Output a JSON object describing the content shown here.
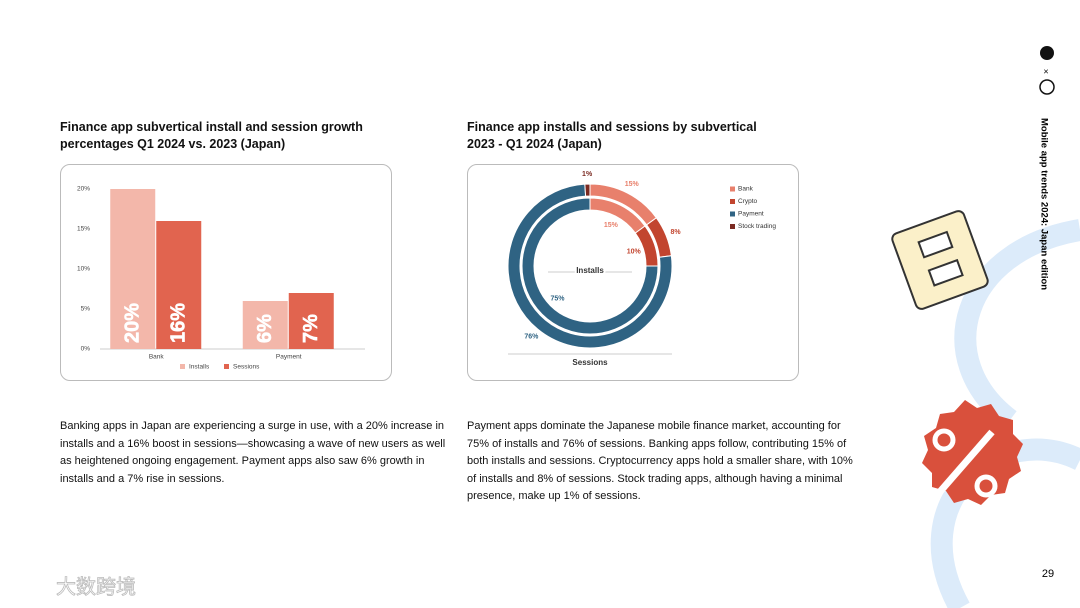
{
  "chart_data": [
    {
      "type": "bar",
      "title": "Finance app subvertical install and session growth percentages Q1 2024 vs. 2023 (Japan)",
      "categories": [
        "Bank",
        "Payment"
      ],
      "series": [
        {
          "name": "Installs",
          "color": "#f3b7aa",
          "values": [
            20,
            6
          ],
          "value_labels": [
            "20%",
            "6%"
          ]
        },
        {
          "name": "Sessions",
          "color": "#e1644f",
          "values": [
            16,
            7
          ],
          "value_labels": [
            "16%",
            "7%"
          ]
        }
      ],
      "ylim": [
        0,
        20
      ],
      "yticks": [
        {
          "value": 0,
          "label": "0%"
        },
        {
          "value": 5,
          "label": "5%"
        },
        {
          "value": 10,
          "label": "10%"
        },
        {
          "value": 15,
          "label": "15%"
        },
        {
          "value": 20,
          "label": "20%"
        }
      ],
      "grid": false,
      "legend": "bottom"
    },
    {
      "type": "donut",
      "title": "Finance app installs and sessions by subvertical 2023 - Q1 2024 (Japan)",
      "categories": [
        "Bank",
        "Crypto",
        "Payment",
        "Stock trading"
      ],
      "colors": [
        "#e8806c",
        "#c2452f",
        "#2f6383",
        "#7b2a22"
      ],
      "series": [
        {
          "name": "Installs",
          "values": [
            15,
            10,
            75,
            0
          ],
          "value_labels": [
            "15%",
            "10%",
            "75%",
            null
          ]
        },
        {
          "name": "Sessions",
          "values": [
            15,
            8,
            76,
            1
          ],
          "value_labels": [
            "15%",
            "8%",
            "76%",
            "1%"
          ]
        }
      ],
      "legend": "right"
    }
  ],
  "page": {
    "paragraphs": [
      "Banking apps in Japan are experiencing a surge in use, with a 20% increase in installs and a 16% boost in sessions—showcasing a wave of new users as well as heightened ongoing engagement. Payment apps also saw 6% growth in installs and a 7% rise in sessions.",
      "Payment apps dominate the Japanese mobile finance market, accounting for 75% of installs and 76% of sessions. Banking apps follow, contributing 15% of both installs and sessions. Cryptocurrency apps hold a smaller share, with 10% of installs and 8% of sessions. Stock trading apps, although having a minimal presence, make up 1% of sessions."
    ],
    "sidebar_title": "Mobile app trends 2024: Japan edition",
    "brand_separator": "×",
    "page_number": "29",
    "watermark": "大数跨境"
  }
}
